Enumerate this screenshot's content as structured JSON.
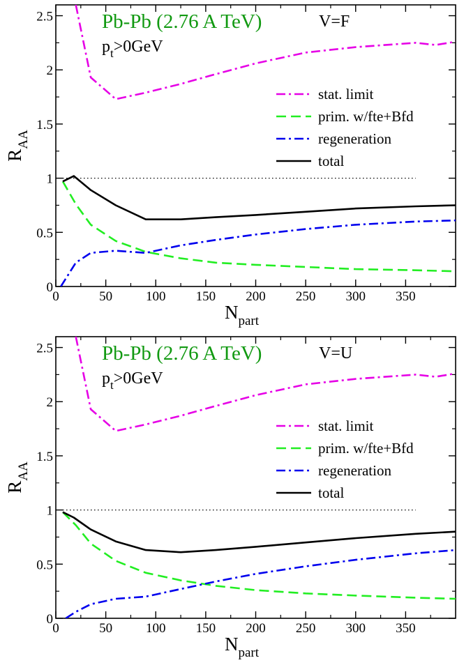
{
  "colors": {
    "stat_limit": "#e600e6",
    "primordial": "#22ee22",
    "regeneration": "#0000ee",
    "total": "#000000",
    "title": "#119911"
  },
  "chart_data": [
    {
      "type": "line",
      "panel_title": "Pb-Pb (2.76 A TeV)",
      "panel_tag": "V=F",
      "cut_label": {
        "main": "p",
        "sub": "t",
        "rest": ">0GeV"
      },
      "xlabel": {
        "main": "N",
        "sub": "part"
      },
      "ylabel": {
        "main": "R",
        "sub": "AA"
      },
      "xlim": [
        0,
        400
      ],
      "ylim": [
        0,
        2.6
      ],
      "x_ticks": [
        "0",
        "50",
        "100",
        "150",
        "200",
        "250",
        "300",
        "350"
      ],
      "y_ticks": [
        "0",
        "0.5",
        "1",
        "1.5",
        "2",
        "2.5"
      ],
      "reference_line": 1,
      "legend_position": "right-middle",
      "series": [
        {
          "name": "stat. limit",
          "color": "#e600e6",
          "dash": "dashdot",
          "x": [
            20,
            35,
            60,
            90,
            125,
            160,
            200,
            250,
            300,
            360,
            380,
            400
          ],
          "y": [
            2.6,
            1.93,
            1.73,
            1.79,
            1.87,
            1.96,
            2.06,
            2.16,
            2.21,
            2.25,
            2.23,
            2.26
          ]
        },
        {
          "name": "prim. w/fte+Bfd",
          "color": "#22ee22",
          "dash": "dash",
          "x": [
            7,
            20,
            35,
            60,
            90,
            125,
            160,
            200,
            250,
            300,
            360,
            400
          ],
          "y": [
            0.97,
            0.76,
            0.57,
            0.42,
            0.32,
            0.26,
            0.22,
            0.2,
            0.18,
            0.16,
            0.15,
            0.14
          ]
        },
        {
          "name": "regeneration",
          "color": "#0000ee",
          "dash": "dashdot",
          "x": [
            5,
            20,
            35,
            60,
            90,
            125,
            160,
            200,
            250,
            300,
            360,
            400
          ],
          "y": [
            0,
            0.22,
            0.31,
            0.33,
            0.31,
            0.38,
            0.43,
            0.48,
            0.53,
            0.57,
            0.6,
            0.61
          ]
        },
        {
          "name": "total",
          "color": "#000000",
          "dash": "solid",
          "x": [
            7,
            18,
            35,
            60,
            90,
            125,
            160,
            200,
            250,
            300,
            360,
            400
          ],
          "y": [
            0.97,
            1.02,
            0.89,
            0.75,
            0.62,
            0.62,
            0.64,
            0.66,
            0.69,
            0.72,
            0.74,
            0.75
          ]
        }
      ]
    },
    {
      "type": "line",
      "panel_title": "Pb-Pb (2.76 A TeV)",
      "panel_tag": "V=U",
      "cut_label": {
        "main": "p",
        "sub": "t",
        "rest": ">0GeV"
      },
      "xlabel": {
        "main": "N",
        "sub": "part"
      },
      "ylabel": {
        "main": "R",
        "sub": "AA"
      },
      "xlim": [
        0,
        400
      ],
      "ylim": [
        0,
        2.6
      ],
      "x_ticks": [
        "0",
        "50",
        "100",
        "150",
        "200",
        "250",
        "300",
        "350"
      ],
      "y_ticks": [
        "0",
        "0.5",
        "1",
        "1.5",
        "2",
        "2.5"
      ],
      "reference_line": 1,
      "legend_position": "right-middle",
      "series": [
        {
          "name": "stat. limit",
          "color": "#e600e6",
          "dash": "dashdot",
          "x": [
            20,
            35,
            60,
            90,
            125,
            160,
            200,
            250,
            300,
            360,
            380,
            400
          ],
          "y": [
            2.6,
            1.93,
            1.73,
            1.79,
            1.87,
            1.96,
            2.06,
            2.16,
            2.21,
            2.25,
            2.23,
            2.26
          ]
        },
        {
          "name": "prim. w/fte+Bfd",
          "color": "#22ee22",
          "dash": "dash",
          "x": [
            7,
            20,
            35,
            60,
            90,
            125,
            160,
            200,
            250,
            300,
            360,
            400
          ],
          "y": [
            0.98,
            0.86,
            0.69,
            0.53,
            0.42,
            0.35,
            0.3,
            0.26,
            0.23,
            0.21,
            0.19,
            0.18
          ]
        },
        {
          "name": "regeneration",
          "color": "#0000ee",
          "dash": "dashdot",
          "x": [
            10,
            20,
            35,
            60,
            90,
            125,
            160,
            200,
            250,
            300,
            360,
            400
          ],
          "y": [
            0,
            0.06,
            0.13,
            0.18,
            0.2,
            0.27,
            0.34,
            0.41,
            0.48,
            0.54,
            0.6,
            0.63
          ]
        },
        {
          "name": "total",
          "color": "#000000",
          "dash": "solid",
          "x": [
            7,
            18,
            35,
            60,
            90,
            125,
            160,
            200,
            250,
            300,
            360,
            400
          ],
          "y": [
            0.98,
            0.93,
            0.82,
            0.71,
            0.63,
            0.61,
            0.63,
            0.66,
            0.7,
            0.74,
            0.78,
            0.8
          ]
        }
      ]
    }
  ]
}
